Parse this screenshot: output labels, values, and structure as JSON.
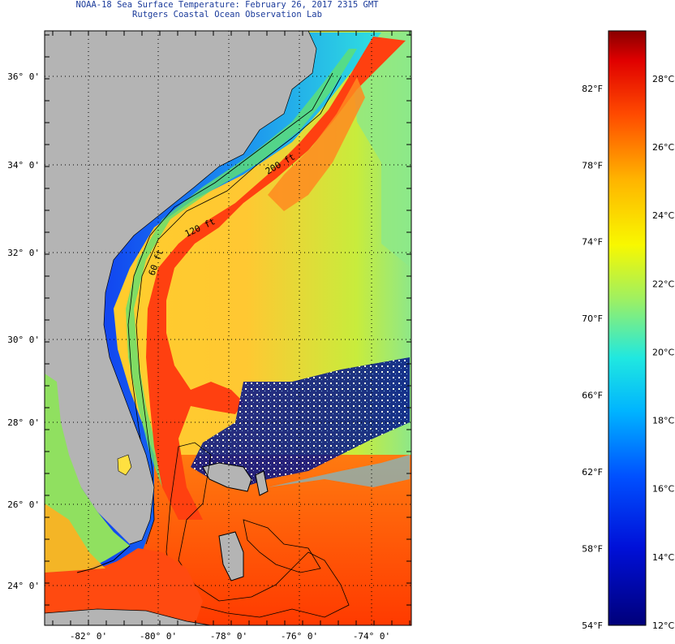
{
  "header": {
    "title_line1": "NOAA-18 Sea Surface Temperature:  February 26, 2017 2315 GMT",
    "title_line2": "Rutgers Coastal Ocean Observation Lab"
  },
  "map": {
    "lat_labels": [
      "36° 0'",
      "34° 0'",
      "32° 0'",
      "30° 0'",
      "28° 0'",
      "26° 0'",
      "24° 0'"
    ],
    "lon_labels": [
      "-82° 0'",
      "-80° 0'",
      "-78° 0'",
      "-76° 0'",
      "-74° 0'"
    ],
    "contour_labels": [
      "120 ft",
      "60 ft",
      "200 ft"
    ],
    "colors": {
      "land": "#b4b4b4",
      "gulf_stream": "#ff2a00",
      "open_ocean": "#ffd23c",
      "cold_shelf": "#1040ff",
      "cloud": "#00107a"
    }
  },
  "colorbar": {
    "fahrenheit_labels": [
      "82°F",
      "78°F",
      "74°F",
      "70°F",
      "66°F",
      "62°F",
      "58°F",
      "54°F"
    ],
    "celsius_labels": [
      "28°C",
      "26°C",
      "24°C",
      "22°C",
      "20°C",
      "18°C",
      "16°C",
      "14°C",
      "12°C"
    ],
    "range_f": [
      54,
      85
    ],
    "range_c": [
      12,
      29.4
    ]
  }
}
